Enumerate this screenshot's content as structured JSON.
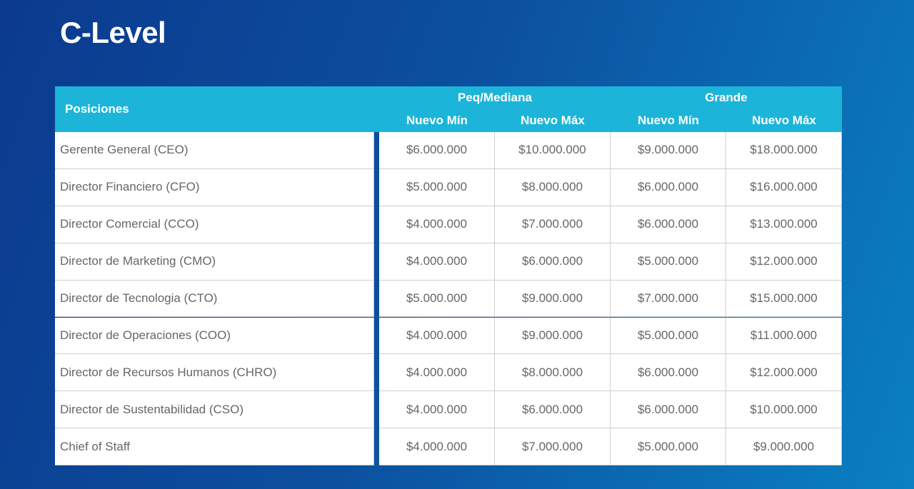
{
  "title": "C-Level",
  "table": {
    "header": {
      "positions": "Posiciones",
      "groups": [
        {
          "label": "Peq/Mediana",
          "columns": [
            "Nuevo Mín",
            "Nuevo Máx"
          ]
        },
        {
          "label": "Grande",
          "columns": [
            "Nuevo Mín",
            "Nuevo Máx"
          ]
        }
      ]
    },
    "rows": [
      [
        "Gerente General (CEO)",
        "$6.000.000",
        "$10.000.000",
        "$9.000.000",
        "$18.000.000"
      ],
      [
        "Director Financiero (CFO)",
        "$5.000.000",
        "$8.000.000",
        "$6.000.000",
        "$16.000.000"
      ],
      [
        "Director Comercial (CCO)",
        "$4.000.000",
        "$7.000.000",
        "$6.000.000",
        "$13.000.000"
      ],
      [
        "Director de Marketing (CMO)",
        "$4.000.000",
        "$6.000.000",
        "$5.000.000",
        "$12.000.000"
      ],
      [
        "Director de Tecnologia (CTO)",
        "$5.000.000",
        "$9.000.000",
        "$7.000.000",
        "$15.000.000"
      ],
      [
        "Director de Operaciones (COO)",
        "$4.000.000",
        "$9.000.000",
        "$5.000.000",
        "$11.000.000"
      ],
      [
        "Director de Recursos Humanos (CHRO)",
        "$4.000.000",
        "$8.000.000",
        "$6.000.000",
        "$12.000.000"
      ],
      [
        "Director de Sustentabilidad (CSO)",
        "$4.000.000",
        "$6.000.000",
        "$6.000.000",
        "$10.000.000"
      ],
      [
        "Chief of Staff",
        "$4.000.000",
        "$7.000.000",
        "$5.000.000",
        "$9.000.000"
      ]
    ]
  }
}
